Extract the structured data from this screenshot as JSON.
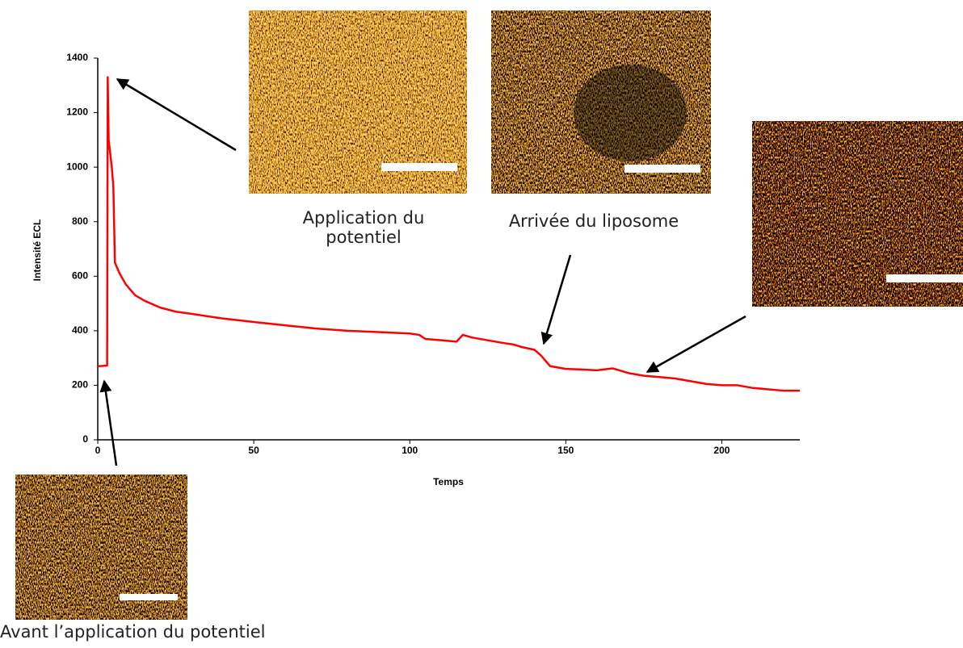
{
  "chart_data": {
    "type": "line",
    "x_label": "Temps",
    "y_label": "Intensité ECL",
    "x": [
      0,
      3,
      3.2,
      3.5,
      4.5,
      5,
      5.5,
      7,
      9,
      12,
      15,
      20,
      25,
      30,
      40,
      50,
      60,
      70,
      80,
      90,
      100,
      103,
      105,
      110,
      115,
      117,
      120,
      125,
      130,
      133,
      136,
      140,
      142,
      145,
      150,
      155,
      160,
      165,
      170,
      175,
      180,
      185,
      190,
      195,
      200,
      205,
      210,
      215,
      220,
      225
    ],
    "series": [
      {
        "name": "ECL",
        "color": "#ff0000",
        "values": [
          270,
          272,
          1330,
          1100,
          1000,
          930,
          650,
          610,
          570,
          530,
          510,
          485,
          470,
          462,
          445,
          432,
          420,
          408,
          400,
          395,
          390,
          385,
          370,
          365,
          360,
          385,
          375,
          365,
          355,
          350,
          340,
          330,
          310,
          270,
          260,
          258,
          255,
          262,
          245,
          235,
          230,
          225,
          215,
          205,
          200,
          200,
          190,
          185,
          180,
          180
        ]
      }
    ],
    "xlim": [
      0,
      225
    ],
    "xticks": [
      0,
      50,
      100,
      150,
      200
    ],
    "ylim": [
      0,
      1400
    ],
    "yticks": [
      0,
      200,
      400,
      600,
      800,
      1000,
      1200,
      1400
    ],
    "grid": false,
    "annotations": [
      "Application du potentiel",
      "Arrivée du liposome",
      "Avant l’application du potentiel"
    ]
  }
}
